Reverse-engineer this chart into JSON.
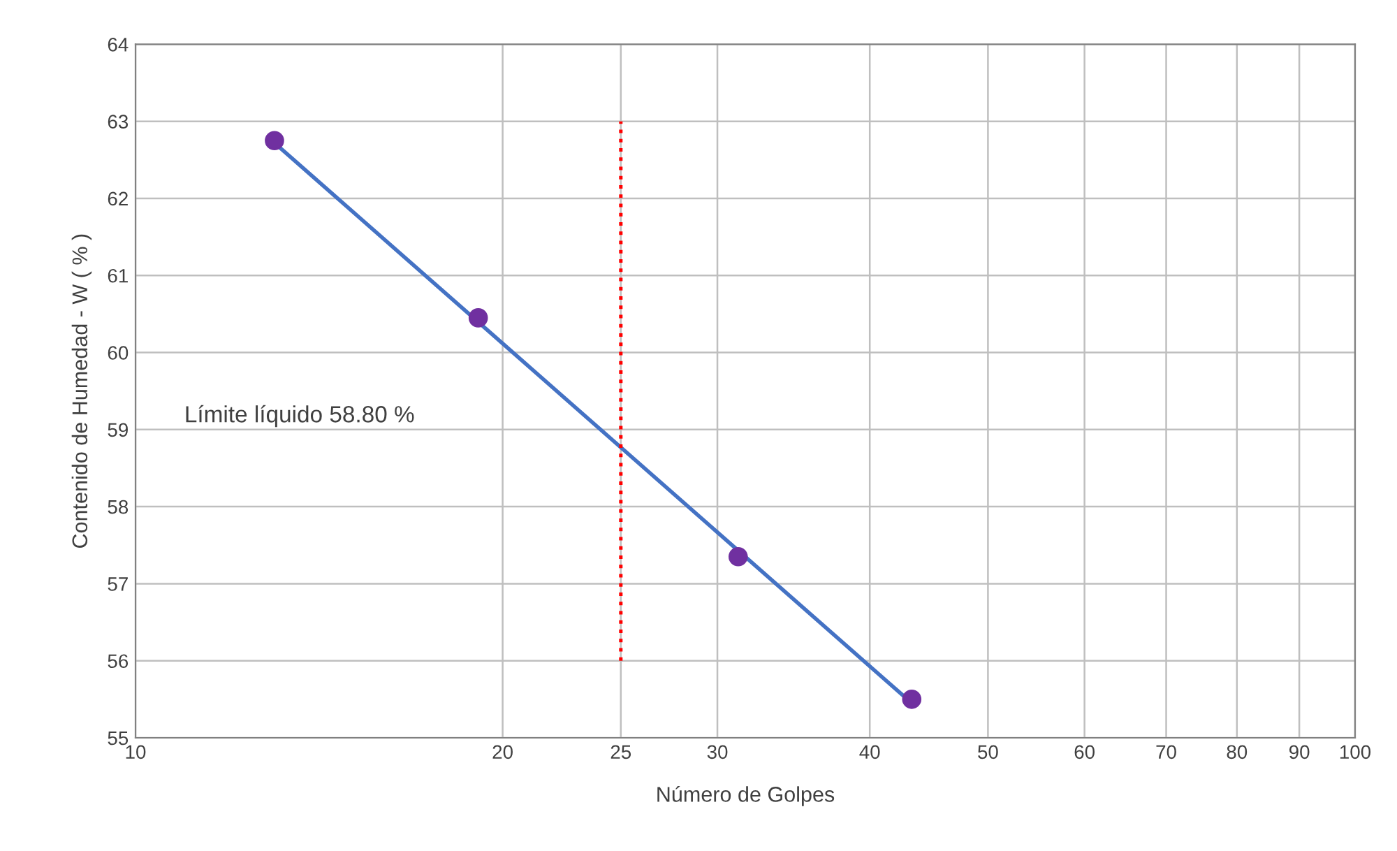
{
  "chart_data": {
    "type": "scatter",
    "xlabel": "Número de Golpes",
    "ylabel": "Contenido de Humedad - W ( % )",
    "log": "x",
    "xlim": [
      10,
      100
    ],
    "xticks": [
      10,
      20,
      25,
      30,
      40,
      50,
      60,
      70,
      80,
      90,
      100
    ],
    "ylim": [
      55,
      64
    ],
    "yticks": [
      55,
      56,
      57,
      58,
      59,
      60,
      61,
      62,
      63,
      64
    ],
    "grid": true,
    "marker": "circle",
    "annotations": [
      "Límite líquido 58.80 %"
    ],
    "series": [
      {
        "type": "line",
        "color": "#4472c4",
        "x": [
          13,
          43.3
        ],
        "values": [
          62.72,
          55.45
        ],
        "marker": "none",
        "line_style": "solid"
      },
      {
        "type": "line",
        "color": "#ff0000",
        "x": [
          25,
          25
        ],
        "values": [
          56,
          63
        ],
        "marker": "none",
        "line_style": "dotted"
      },
      {
        "color": "#7030a0",
        "x": [
          13,
          19.1,
          31.2,
          43.3
        ],
        "values": [
          62.75,
          60.45,
          57.35,
          55.5
        ]
      }
    ]
  }
}
